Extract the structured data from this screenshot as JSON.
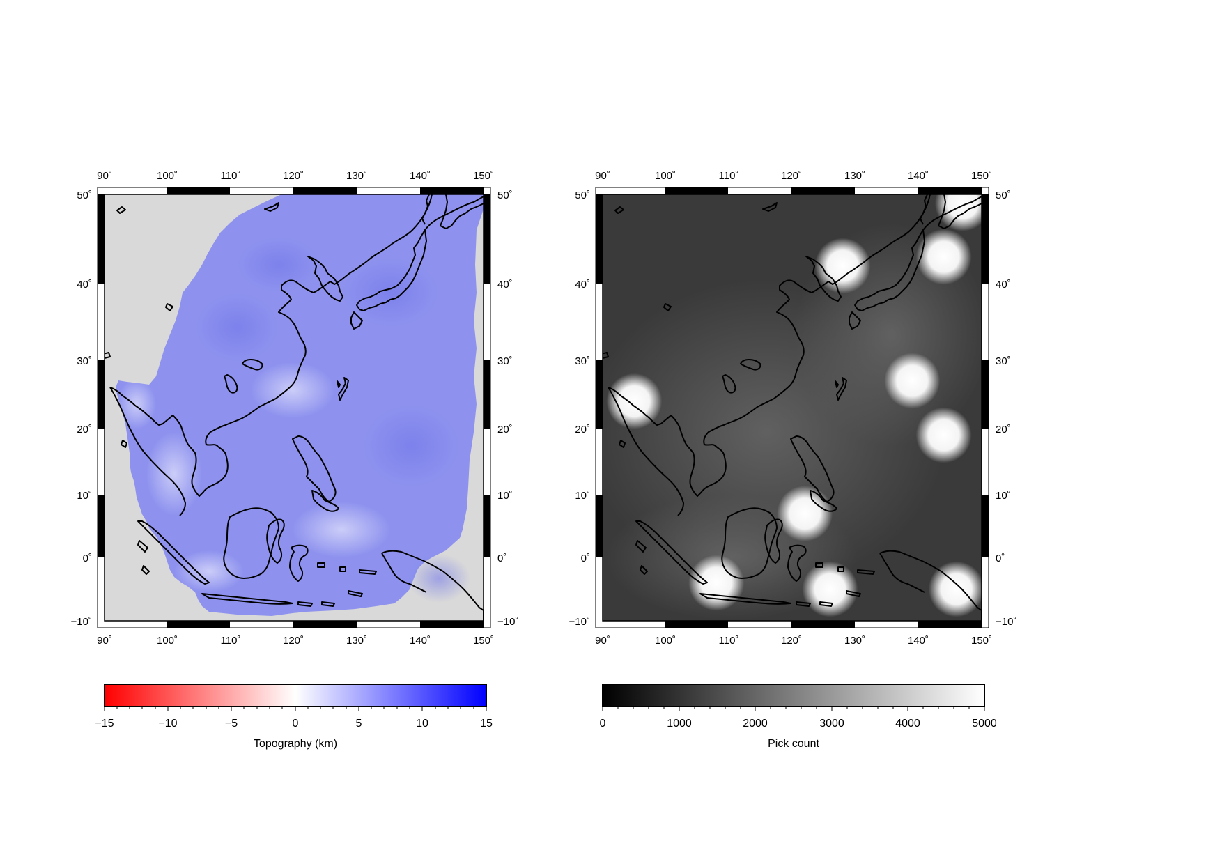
{
  "panels": [
    {
      "id": "topography",
      "lon_ticks": [
        "90˚",
        "100˚",
        "110˚",
        "120˚",
        "130˚",
        "140˚",
        "150˚"
      ],
      "lat_ticks": [
        "50˚",
        "40˚",
        "30˚",
        "20˚",
        "10˚",
        "0˚",
        "−10˚"
      ],
      "colorbar": {
        "label": "Topography (km)",
        "ticks": [
          "−15",
          "−10",
          "−5",
          "0",
          "5",
          "10",
          "15"
        ],
        "range": [
          -15,
          15
        ],
        "colors": {
          "low": "#ff0000",
          "mid": "#ffffff",
          "high": "#0000ff"
        }
      },
      "land_mask_color": "#d9d9d9",
      "field_color": "#8e92ee"
    },
    {
      "id": "pick-count",
      "lon_ticks": [
        "90˚",
        "100˚",
        "110˚",
        "120˚",
        "130˚",
        "140˚",
        "150˚"
      ],
      "lat_ticks": [
        "50˚",
        "40˚",
        "30˚",
        "20˚",
        "10˚",
        "0˚",
        "−10˚"
      ],
      "colorbar": {
        "label": "Pick count",
        "ticks": [
          "0",
          "1000",
          "2000",
          "3000",
          "4000",
          "5000"
        ],
        "range": [
          0,
          5000
        ],
        "colors": {
          "low": "#000000",
          "high": "#ffffff"
        }
      },
      "background_color": "#3a3a3a",
      "hotspots_lonlat": [
        [
          95,
          24
        ],
        [
          128,
          42
        ],
        [
          144,
          43
        ],
        [
          147,
          49
        ],
        [
          139,
          27
        ],
        [
          144,
          19
        ],
        [
          122,
          7
        ],
        [
          108,
          -4
        ],
        [
          126,
          -5
        ],
        [
          146,
          -5
        ]
      ]
    }
  ],
  "map_extent": {
    "lon": [
      90,
      150
    ],
    "lat": [
      -10,
      50
    ]
  }
}
